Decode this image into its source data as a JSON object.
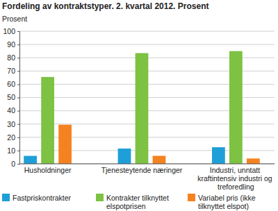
{
  "chart_data": {
    "type": "bar",
    "title": "Fordeling av kontraktstyper. 2. kvartal 2012. Prosent",
    "y_label": "Prosent",
    "categories": [
      "Husholdninger",
      "Tjenesteytende næringer",
      "Industri, unntatt kraftintensiv industri og treforedling"
    ],
    "series": [
      {
        "name": "Fastpriskontrakter",
        "color": "#1f9fd8",
        "values": [
          6,
          11.5,
          12.5
        ]
      },
      {
        "name": "Kontrakter tilknyttet elspotprisen",
        "color": "#7dc242",
        "values": [
          65.5,
          83.5,
          85
        ]
      },
      {
        "name": "Variabel pris (ikke tilknyttet elspot)",
        "color": "#f58220",
        "values": [
          29.5,
          6,
          4
        ]
      }
    ],
    "ylim": [
      0,
      100
    ],
    "yticks": [
      0,
      10,
      20,
      30,
      40,
      50,
      60,
      70,
      80,
      90,
      100
    ],
    "grid": true,
    "legend": "bottom"
  }
}
